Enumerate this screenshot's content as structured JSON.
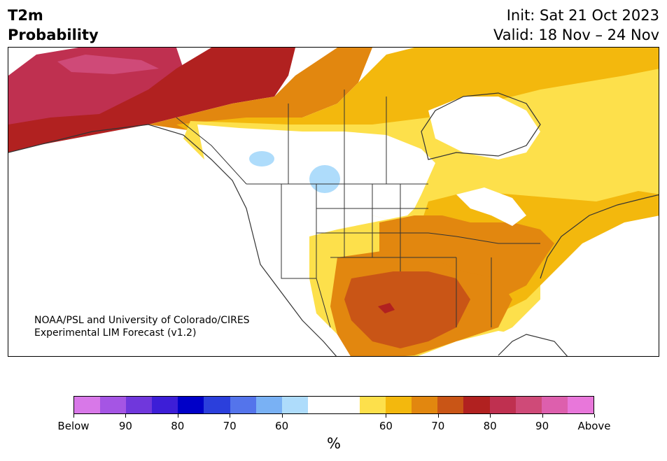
{
  "title": {
    "left_line1": "T2m",
    "left_line2": "Probability",
    "right_line1": "Init: Sat 21 Oct 2023",
    "right_line2": "Valid: 18 Nov – 24 Nov"
  },
  "credit": {
    "line1": "NOAA/PSL and University of Colorado/CIRES",
    "line2": "Experimental LIM Forecast (v1.2)"
  },
  "colorbar": {
    "colors": [
      "#d878e8",
      "#a555e4",
      "#7037dc",
      "#3d1ed7",
      "#0000c8",
      "#2b3fdc",
      "#5474eb",
      "#79b1f4",
      "#aedcfb",
      "#ffffff",
      "#ffffff",
      "#fde04b",
      "#f3b80d",
      "#e2870f",
      "#c95516",
      "#b12120",
      "#bf3050",
      "#cf4a78",
      "#dd5fad",
      "#e877da"
    ],
    "ticks": [
      "Below",
      "90",
      "80",
      "70",
      "60",
      "60",
      "70",
      "80",
      "90",
      "Above"
    ],
    "unit": "%"
  },
  "map": {
    "colors": {
      "white": "#ffffff",
      "yellow": "#fde04b",
      "gold": "#f3b80d",
      "orange": "#e2870f",
      "dark_orange": "#c95516",
      "red": "#b12120",
      "crimson": "#bf3050",
      "pink": "#cf4a78",
      "light_blue": "#aedcfb",
      "outline": "#333333"
    }
  }
}
